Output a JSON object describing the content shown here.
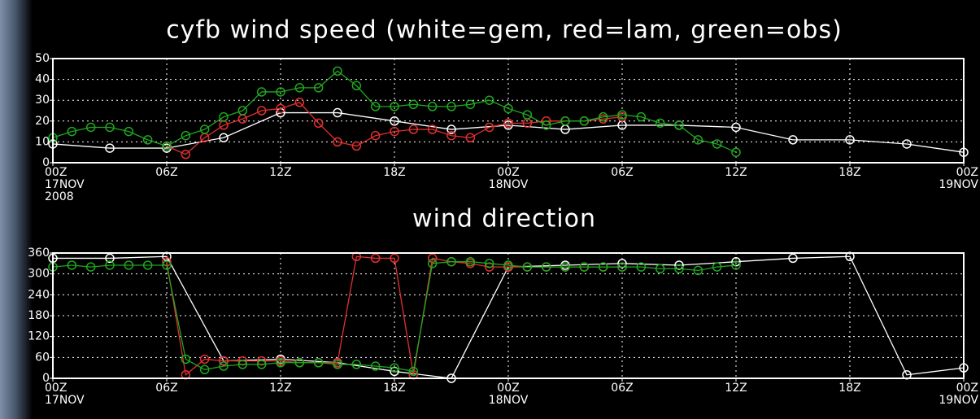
{
  "chart_data": [
    {
      "type": "line",
      "title": "cyfb wind speed (white=gem, red=lam, green=obs)",
      "xlim": [
        0,
        48
      ],
      "xticks": [
        {
          "value": 0,
          "label": [
            "00Z",
            "17NOV",
            "2008"
          ]
        },
        {
          "value": 6,
          "label": [
            "06Z"
          ]
        },
        {
          "value": 12,
          "label": [
            "12Z"
          ]
        },
        {
          "value": 18,
          "label": [
            "18Z"
          ]
        },
        {
          "value": 24,
          "label": [
            "00Z",
            "18NOV"
          ]
        },
        {
          "value": 30,
          "label": [
            "06Z"
          ]
        },
        {
          "value": 36,
          "label": [
            "12Z"
          ]
        },
        {
          "value": 42,
          "label": [
            "18Z"
          ]
        },
        {
          "value": 48,
          "label": [
            "00Z",
            "19NOV"
          ]
        }
      ],
      "ylim": [
        0,
        50
      ],
      "yticks": [
        0,
        10,
        20,
        30,
        40,
        50
      ],
      "grid": true,
      "series": [
        {
          "color": "#ffffff",
          "x": [
            0,
            3,
            6,
            9,
            12,
            15,
            18,
            21,
            24,
            27,
            30,
            33,
            36,
            39,
            42,
            45,
            48
          ],
          "values": [
            9,
            7,
            7,
            12,
            24,
            24,
            20,
            16,
            18,
            16,
            18,
            18,
            17,
            11,
            11,
            9,
            5
          ]
        },
        {
          "color": "#e03030",
          "x": [
            6,
            7,
            8,
            9,
            10,
            11,
            12,
            13,
            14,
            15,
            16,
            17,
            18,
            19,
            20,
            21,
            22,
            23,
            24,
            25,
            26,
            27,
            28,
            29,
            30
          ],
          "values": [
            8,
            4,
            12,
            18,
            21,
            25,
            26,
            29,
            19,
            10,
            8,
            13,
            15,
            16,
            16,
            13,
            12,
            17,
            19,
            19,
            20,
            20,
            20,
            21,
            22
          ]
        },
        {
          "color": "#1fa81f",
          "x": [
            0,
            1,
            2,
            3,
            4,
            5,
            6,
            7,
            8,
            9,
            10,
            11,
            12,
            13,
            14,
            15,
            16,
            17,
            18,
            19,
            20,
            21,
            22,
            23,
            24,
            25,
            26,
            27,
            28,
            29,
            30,
            31,
            32,
            33,
            34,
            35,
            36
          ],
          "values": [
            12,
            15,
            17,
            17,
            15,
            11,
            8,
            13,
            16,
            22,
            25,
            34,
            34,
            36,
            36,
            44,
            37,
            27,
            27,
            28,
            27,
            27,
            28,
            30,
            26,
            23,
            18,
            20,
            20,
            22,
            23,
            22,
            19,
            18,
            11,
            9,
            5
          ]
        }
      ]
    },
    {
      "type": "line",
      "title": "wind direction",
      "xlim": [
        0,
        48
      ],
      "xticks": [
        {
          "value": 0,
          "label": [
            "00Z",
            "17NOV"
          ]
        },
        {
          "value": 6,
          "label": [
            "06Z"
          ]
        },
        {
          "value": 12,
          "label": [
            "12Z"
          ]
        },
        {
          "value": 18,
          "label": [
            "18Z"
          ]
        },
        {
          "value": 24,
          "label": [
            "00Z",
            "18NOV"
          ]
        },
        {
          "value": 30,
          "label": [
            "06Z"
          ]
        },
        {
          "value": 36,
          "label": [
            "12Z"
          ]
        },
        {
          "value": 42,
          "label": [
            "18Z"
          ]
        },
        {
          "value": 48,
          "label": [
            "00Z",
            "19NOV"
          ]
        }
      ],
      "ylim": [
        0,
        360
      ],
      "yticks": [
        0,
        60,
        120,
        180,
        240,
        300,
        360
      ],
      "grid": true,
      "series": [
        {
          "color": "#ffffff",
          "x": [
            0,
            3,
            6,
            9,
            12,
            15,
            18,
            21,
            24,
            27,
            30,
            33,
            36,
            39,
            42,
            45,
            48
          ],
          "values": [
            345,
            345,
            350,
            50,
            55,
            45,
            20,
            0,
            320,
            325,
            330,
            325,
            335,
            345,
            350,
            10,
            30
          ]
        },
        {
          "color": "#e03030",
          "x": [
            6,
            7,
            8,
            9,
            10,
            11,
            12,
            13,
            14,
            15,
            16,
            17,
            18,
            19,
            20,
            21,
            22,
            23,
            24,
            25,
            26,
            27,
            28,
            29,
            30
          ],
          "values": [
            335,
            10,
            55,
            50,
            50,
            50,
            50,
            45,
            45,
            45,
            350,
            345,
            345,
            10,
            345,
            335,
            330,
            320,
            320,
            320,
            320,
            320,
            320,
            320,
            320
          ]
        },
        {
          "color": "#1fa81f",
          "x": [
            0,
            1,
            2,
            3,
            4,
            5,
            6,
            7,
            8,
            9,
            10,
            11,
            12,
            13,
            14,
            15,
            16,
            17,
            18,
            19,
            20,
            21,
            22,
            23,
            24,
            25,
            26,
            27,
            28,
            29,
            30,
            31,
            32,
            33,
            34,
            35,
            36
          ],
          "values": [
            320,
            325,
            320,
            325,
            325,
            325,
            325,
            55,
            25,
            35,
            40,
            40,
            45,
            45,
            45,
            40,
            40,
            35,
            30,
            20,
            330,
            335,
            335,
            330,
            325,
            320,
            320,
            320,
            320,
            320,
            320,
            320,
            315,
            315,
            310,
            320,
            325
          ]
        }
      ]
    }
  ]
}
